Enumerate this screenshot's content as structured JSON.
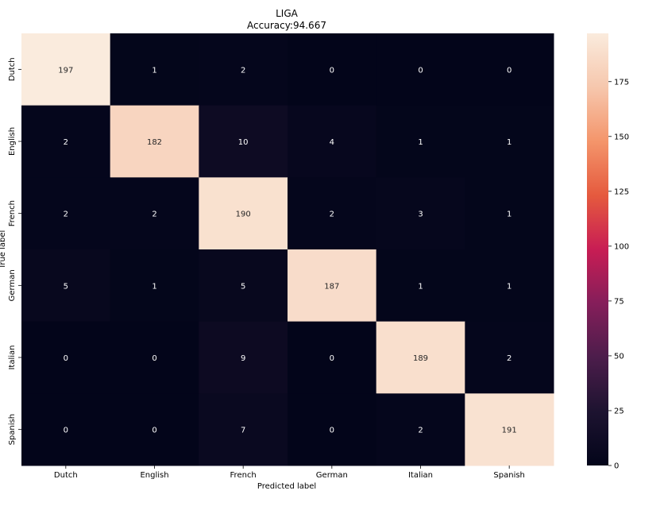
{
  "chart_data": {
    "type": "heatmap",
    "title": "LIGA",
    "subtitle": "Accuracy:94.667",
    "xlabel": "Predicted label",
    "ylabel": "True label",
    "x_categories": [
      "Dutch",
      "English",
      "French",
      "German",
      "Italian",
      "Spanish"
    ],
    "y_categories": [
      "Dutch",
      "English",
      "French",
      "German",
      "Italian",
      "Spanish"
    ],
    "values": [
      [
        197,
        1,
        2,
        0,
        0,
        0
      ],
      [
        2,
        182,
        10,
        4,
        1,
        1
      ],
      [
        2,
        2,
        190,
        2,
        3,
        1
      ],
      [
        5,
        1,
        5,
        187,
        1,
        1
      ],
      [
        0,
        0,
        9,
        0,
        189,
        2
      ],
      [
        0,
        0,
        7,
        0,
        2,
        191
      ]
    ],
    "colorbar": {
      "colormap": "rocket",
      "range": [
        0,
        197
      ],
      "ticks": [
        0,
        25,
        50,
        75,
        100,
        125,
        150,
        175
      ]
    },
    "colormap_stops": [
      "#03051a",
      "#1d1330",
      "#4c1d4b",
      "#851e5a",
      "#c81d54",
      "#e55a3e",
      "#f4956b",
      "#f6c7ad",
      "#faebdd"
    ]
  }
}
